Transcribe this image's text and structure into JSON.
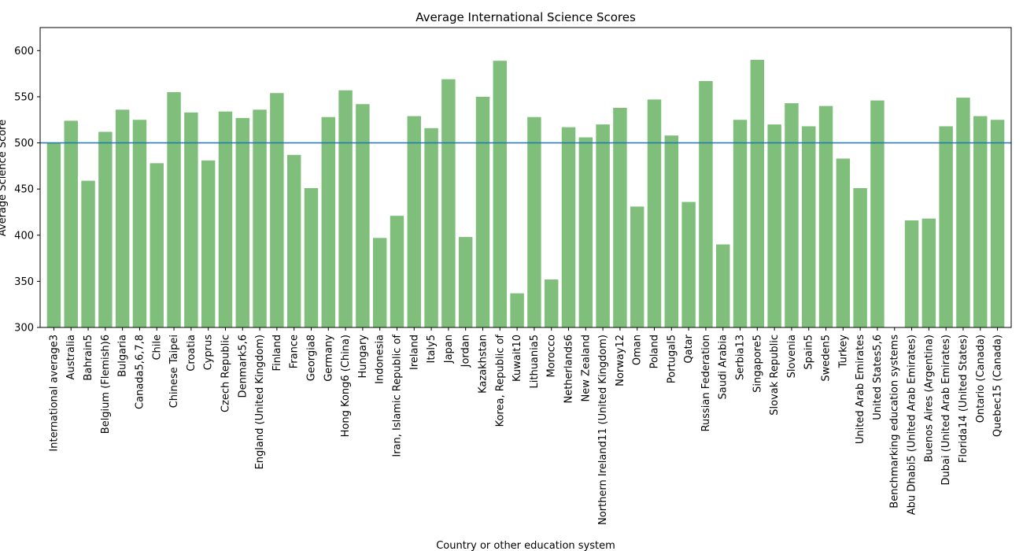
{
  "chart_data": {
    "type": "bar",
    "title": "Average International Science Scores",
    "xlabel": "Country or other education system",
    "ylabel": "Average Science Score",
    "ylim": [
      300,
      625
    ],
    "yticks": [
      300,
      350,
      400,
      450,
      500,
      550,
      600
    ],
    "reference_line": 500,
    "colors": {
      "bar": "#7fbf7b",
      "reference_line": "#1f77b4",
      "axes": "#000000"
    },
    "categories": [
      "International average3",
      "Australia",
      "Bahrain5",
      "Belgium (Flemish)6",
      "Bulgaria",
      "Canada5,6,7,8",
      "Chile",
      "Chinese Taipei",
      "Croatia",
      "Cyprus",
      "Czech Republic",
      "Denmark5,6",
      "England (United Kingdom)",
      "Finland",
      "France",
      "Georgia8",
      "Germany",
      "Hong Kong6 (China)",
      "Hungary",
      "Indonesia",
      "Iran, Islamic Republic of",
      "Ireland",
      "Italy5",
      "Japan",
      "Jordan",
      "Kazakhstan",
      "Korea, Republic of",
      "Kuwait10",
      "Lithuania5",
      "Morocco",
      "Netherlands6",
      "New Zealand",
      "Northern Ireland11 (United Kingdom)",
      "Norway12",
      "Oman",
      "Poland",
      "Portugal5",
      "Qatar",
      "Russian Federation",
      "Saudi Arabia",
      "Serbia13",
      "Singapore5",
      "Slovak Republic",
      "Slovenia",
      "Spain5",
      "Sweden5",
      "Turkey",
      "United Arab Emirates",
      "United States5,6",
      "Benchmarking education systems",
      "Abu Dhabi5 (United Arab Emirates)",
      "Buenos Aires (Argentina)",
      "Dubai (United Arab Emirates)",
      "Florida14 (United States)",
      "Ontario (Canada)",
      "Quebec15 (Canada)"
    ],
    "values": [
      500,
      524,
      459,
      512,
      536,
      525,
      478,
      555,
      533,
      481,
      534,
      527,
      536,
      554,
      487,
      451,
      528,
      557,
      542,
      397,
      421,
      529,
      516,
      569,
      398,
      550,
      589,
      337,
      528,
      352,
      517,
      506,
      520,
      538,
      431,
      547,
      508,
      436,
      567,
      390,
      525,
      590,
      520,
      543,
      518,
      540,
      483,
      451,
      546,
      null,
      416,
      418,
      518,
      549,
      529,
      525
    ]
  }
}
